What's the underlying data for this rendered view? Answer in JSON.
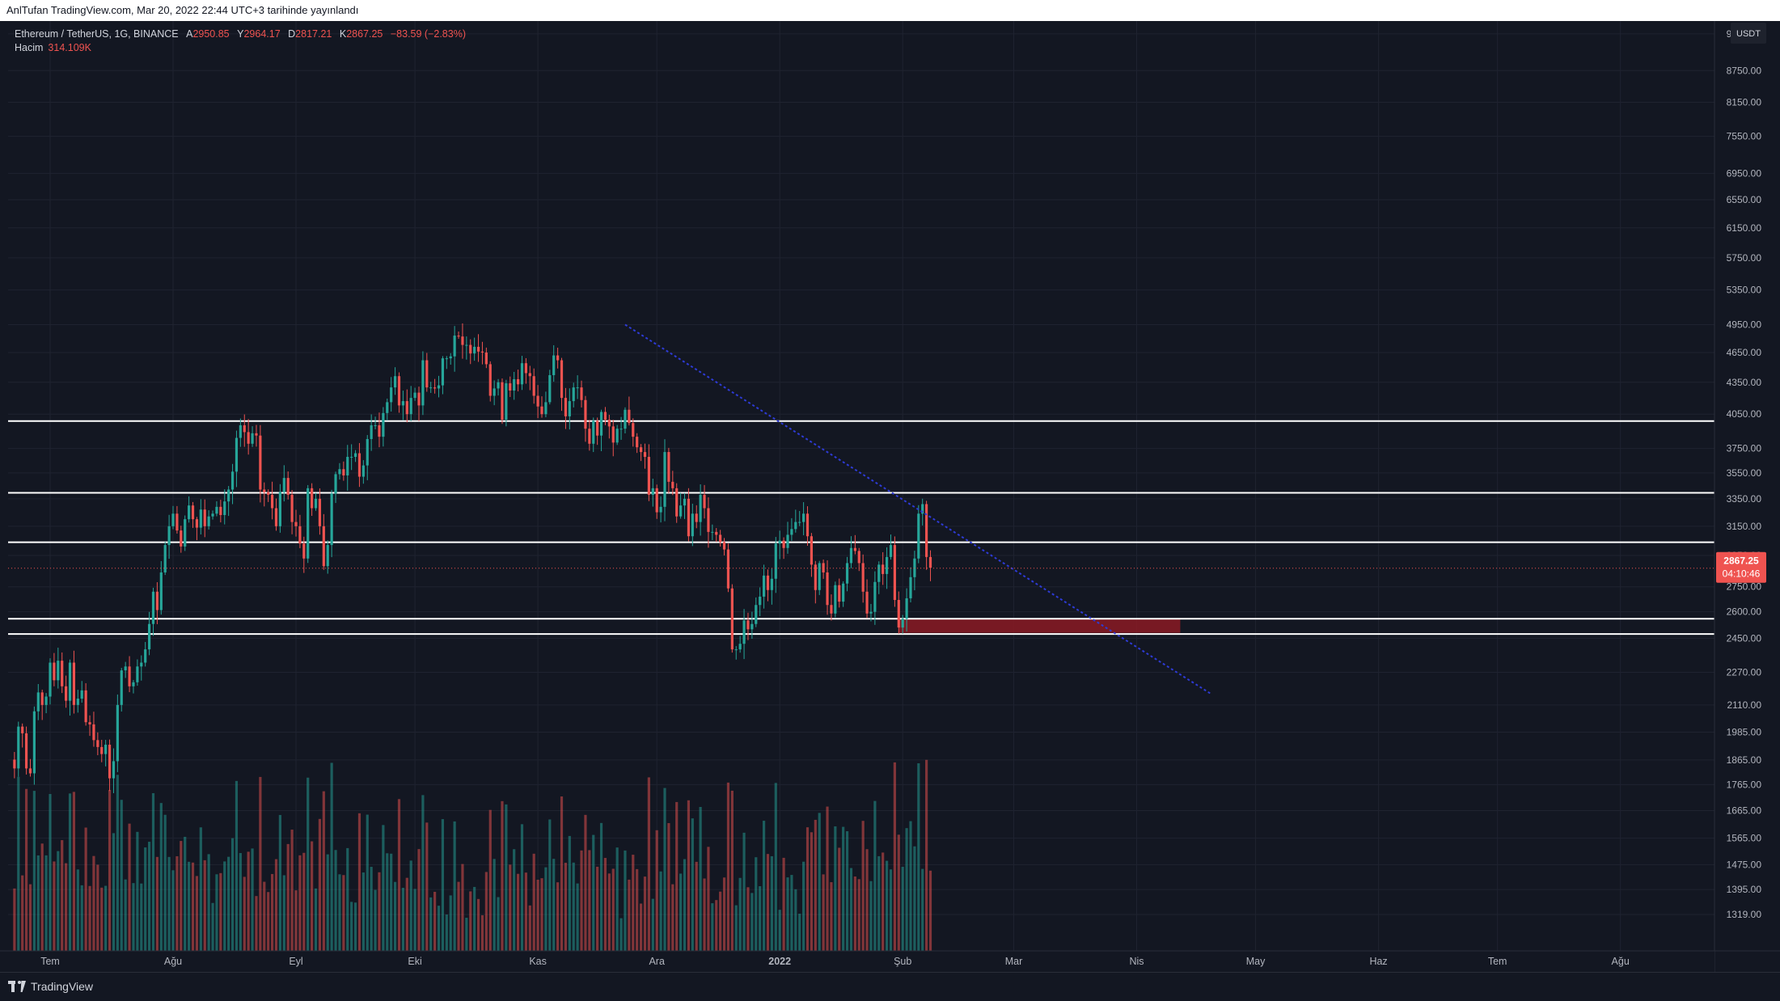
{
  "header": {
    "published_text": "AnlTufan TradingView.com, Mar 20, 2022 22:44 UTC+3 tarihinde yayınlandı"
  },
  "legend": {
    "symbol": "Ethereum / TetherUS, 1G, BINANCE",
    "open_label": "A",
    "open": "2950.85",
    "high_label": "Y",
    "high": "2964.17",
    "low_label": "D",
    "low": "2817.21",
    "close_label": "K",
    "close": "2867.25",
    "change": "−83.59 (−2.83%)",
    "volume_label": "Hacim",
    "volume": "314.109K"
  },
  "colors": {
    "background": "#131722",
    "up": "#26a69a",
    "down": "#ef5350",
    "trendline": "#2e3bd6",
    "support_zone": "#8b1a23",
    "levels": "#ffffff"
  },
  "price_axis": {
    "unit_label": "USDT",
    "ticks": [
      "9500.00",
      "8750.00",
      "8150.00",
      "7550.00",
      "6950.00",
      "6550.00",
      "6150.00",
      "5750.00",
      "5350.00",
      "4950.00",
      "4650.00",
      "4350.00",
      "4050.00",
      "3750.00",
      "3550.00",
      "3350.00",
      "3150.00",
      "2950.00",
      "2750.00",
      "2600.00",
      "2450.00",
      "2270.00",
      "2110.00",
      "1985.00",
      "1865.00",
      "1765.00",
      "1665.00",
      "1565.00",
      "1475.00",
      "1395.00",
      "1319.00"
    ],
    "current_price": "2867.25",
    "countdown": "04:10:46",
    "log_scale": true
  },
  "time_axis": {
    "labels": [
      "Tem",
      "Ağu",
      "Eyl",
      "Eki",
      "Kas",
      "Ara",
      "2022",
      "Şub",
      "Mar",
      "Nis",
      "May",
      "Haz",
      "Tem",
      "Ağu"
    ]
  },
  "horizontal_levels": [
    {
      "price": 3987.81,
      "label": "3987.81"
    },
    {
      "price": 3394.64,
      "label": "3394.64"
    },
    {
      "price": 3038.89,
      "label": "3038.89"
    },
    {
      "price": 2560.03,
      "label": "2560.03"
    },
    {
      "price": 2473.72,
      "label": "2473.72"
    }
  ],
  "support_zone": {
    "top": 2560,
    "bottom": 2480,
    "start_date": "2022-01-31",
    "end_date": "2022-04-12"
  },
  "trendline": {
    "start_date": "2021-11-23",
    "start_price": 4950,
    "end_date": "2022-04-20",
    "end_price": 2160
  },
  "branding": {
    "name": "TradingView"
  },
  "chart_data": {
    "type": "candlestick",
    "title": "Ethereum / TetherUS, 1G, BINANCE",
    "xlabel": "",
    "ylabel": "USDT",
    "ylim": [
      1300,
      11000
    ],
    "x_range": [
      "2021-06-21",
      "2022-08-31"
    ],
    "scale": "log",
    "grid": true,
    "daily_closes_start": "2021-06-22",
    "daily_closes": [
      1830,
      2010,
      1980,
      1830,
      1810,
      2080,
      2170,
      2110,
      2150,
      2320,
      2230,
      2330,
      2200,
      2130,
      2320,
      2110,
      2140,
      2180,
      2030,
      2020,
      1950,
      1920,
      1890,
      1930,
      1790,
      1860,
      2110,
      2280,
      2300,
      2200,
      2220,
      2300,
      2320,
      2390,
      2530,
      2720,
      2610,
      2840,
      3020,
      3150,
      3240,
      3120,
      3010,
      3200,
      3300,
      3200,
      3140,
      3270,
      3150,
      3220,
      3240,
      3290,
      3230,
      3330,
      3420,
      3560,
      3840,
      3950,
      3890,
      3790,
      3880,
      3860,
      3420,
      3400,
      3380,
      3280,
      3150,
      3400,
      3510,
      3380,
      3180,
      3150,
      3030,
      2930,
      3430,
      3280,
      3350,
      3150,
      2880,
      3020,
      3390,
      3540,
      3580,
      3530,
      3680,
      3680,
      3710,
      3520,
      3610,
      3830,
      3950,
      3950,
      3850,
      4060,
      4160,
      4300,
      4410,
      4130,
      4170,
      4050,
      4200,
      4250,
      4130,
      4570,
      4300,
      4300,
      4290,
      4320,
      4590,
      4590,
      4610,
      4830,
      4820,
      4730,
      4730,
      4640,
      4710,
      4660,
      4650,
      4530,
      4220,
      4290,
      4350,
      4000,
      4340,
      4270,
      4380,
      4330,
      4540,
      4440,
      4410,
      4220,
      4120,
      4050,
      4160,
      4420,
      4620,
      4570,
      4200,
      4030,
      4170,
      4300,
      4300,
      4180,
      3920,
      3790,
      3990,
      3860,
      4070,
      4000,
      3940,
      3800,
      3920,
      3920,
      4090,
      3970,
      3850,
      3760,
      3720,
      3680,
      3380,
      3430,
      3250,
      3290,
      3720,
      3480,
      3430,
      3220,
      3300,
      3350,
      3080,
      3240,
      3180,
      3380,
      3280,
      3110,
      3110,
      3090,
      3040,
      2990,
      2740,
      2390,
      2390,
      2420,
      2550,
      2500,
      2530,
      2640,
      2690,
      2820,
      2730,
      2800,
      3030,
      3050,
      3000,
      3090,
      3130,
      3180,
      3180,
      3240,
      3080,
      2890,
      2730,
      2900,
      2840,
      2640,
      2590,
      2760,
      2660,
      2770,
      2900,
      3000,
      2980,
      2900,
      2720,
      2590,
      2600,
      2780,
      2890,
      2830,
      2940,
      3020,
      2670,
      2510,
      2560,
      2680,
      2810,
      2930,
      3240,
      3310,
      2940,
      2870
    ],
    "volume_scale": "relative"
  }
}
